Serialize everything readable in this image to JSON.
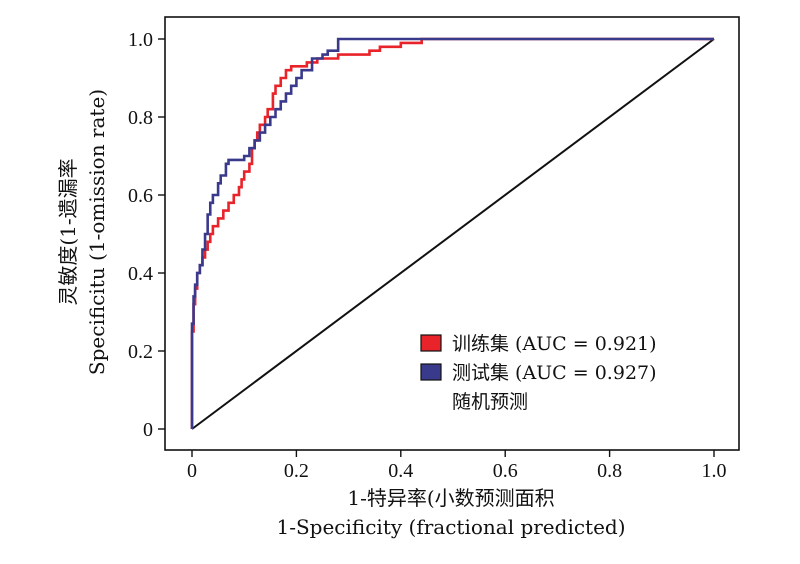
{
  "chart_data": {
    "type": "line",
    "xlabel_cn": "1-特异率(小数预测面积",
    "xlabel_en": "1-Specificity (fractional predicted)",
    "ylabel_cn": "灵敏度(1-遗漏率",
    "ylabel_en": "Specificitu (1-omission rate)",
    "xlim": [
      0,
      1
    ],
    "ylim": [
      0,
      1
    ],
    "x_ticks": [
      "0",
      "0.2",
      "0.4",
      "0.6",
      "0.8",
      "1.0"
    ],
    "y_ticks": [
      "0",
      "0.2",
      "0.4",
      "0.6",
      "0.8",
      "1.0"
    ],
    "legend_position": "lower-right",
    "series": [
      {
        "name": "训练集 (AUC = 0.921)",
        "color": "#e8232a",
        "points": [
          [
            0,
            0
          ],
          [
            0,
            0.15
          ],
          [
            0.003,
            0.25
          ],
          [
            0.006,
            0.32
          ],
          [
            0.01,
            0.36
          ],
          [
            0.015,
            0.4
          ],
          [
            0.02,
            0.42
          ],
          [
            0.025,
            0.44
          ],
          [
            0.03,
            0.46
          ],
          [
            0.035,
            0.48
          ],
          [
            0.04,
            0.5
          ],
          [
            0.05,
            0.52
          ],
          [
            0.06,
            0.54
          ],
          [
            0.07,
            0.56
          ],
          [
            0.08,
            0.58
          ],
          [
            0.09,
            0.6
          ],
          [
            0.095,
            0.62
          ],
          [
            0.1,
            0.64
          ],
          [
            0.11,
            0.66
          ],
          [
            0.115,
            0.68
          ],
          [
            0.12,
            0.72
          ],
          [
            0.125,
            0.74
          ],
          [
            0.13,
            0.76
          ],
          [
            0.14,
            0.78
          ],
          [
            0.145,
            0.8
          ],
          [
            0.155,
            0.82
          ],
          [
            0.16,
            0.86
          ],
          [
            0.17,
            0.88
          ],
          [
            0.18,
            0.9
          ],
          [
            0.19,
            0.92
          ],
          [
            0.2,
            0.93
          ],
          [
            0.22,
            0.93
          ],
          [
            0.24,
            0.94
          ],
          [
            0.26,
            0.95
          ],
          [
            0.28,
            0.95
          ],
          [
            0.3,
            0.96
          ],
          [
            0.34,
            0.96
          ],
          [
            0.36,
            0.97
          ],
          [
            0.4,
            0.98
          ],
          [
            0.44,
            0.99
          ],
          [
            0.46,
            1.0
          ],
          [
            1.0,
            1.0
          ]
        ]
      },
      {
        "name": "测试集 (AUC = 0.927)",
        "color": "#3a3a8c",
        "points": [
          [
            0,
            0
          ],
          [
            0,
            0.2
          ],
          [
            0.003,
            0.27
          ],
          [
            0.006,
            0.34
          ],
          [
            0.01,
            0.37
          ],
          [
            0.015,
            0.4
          ],
          [
            0.02,
            0.42
          ],
          [
            0.025,
            0.46
          ],
          [
            0.03,
            0.5
          ],
          [
            0.035,
            0.55
          ],
          [
            0.04,
            0.58
          ],
          [
            0.05,
            0.6
          ],
          [
            0.055,
            0.63
          ],
          [
            0.065,
            0.65
          ],
          [
            0.07,
            0.68
          ],
          [
            0.08,
            0.69
          ],
          [
            0.09,
            0.69
          ],
          [
            0.1,
            0.69
          ],
          [
            0.11,
            0.7
          ],
          [
            0.12,
            0.72
          ],
          [
            0.13,
            0.74
          ],
          [
            0.14,
            0.76
          ],
          [
            0.15,
            0.78
          ],
          [
            0.16,
            0.8
          ],
          [
            0.17,
            0.82
          ],
          [
            0.18,
            0.84
          ],
          [
            0.19,
            0.86
          ],
          [
            0.2,
            0.88
          ],
          [
            0.21,
            0.9
          ],
          [
            0.23,
            0.92
          ],
          [
            0.25,
            0.95
          ],
          [
            0.26,
            0.96
          ],
          [
            0.28,
            0.97
          ],
          [
            0.29,
            1.0
          ],
          [
            1.0,
            1.0
          ]
        ]
      },
      {
        "name": "随机预测",
        "color": "#111111",
        "points": [
          [
            0,
            0
          ],
          [
            1,
            1
          ]
        ]
      }
    ]
  }
}
